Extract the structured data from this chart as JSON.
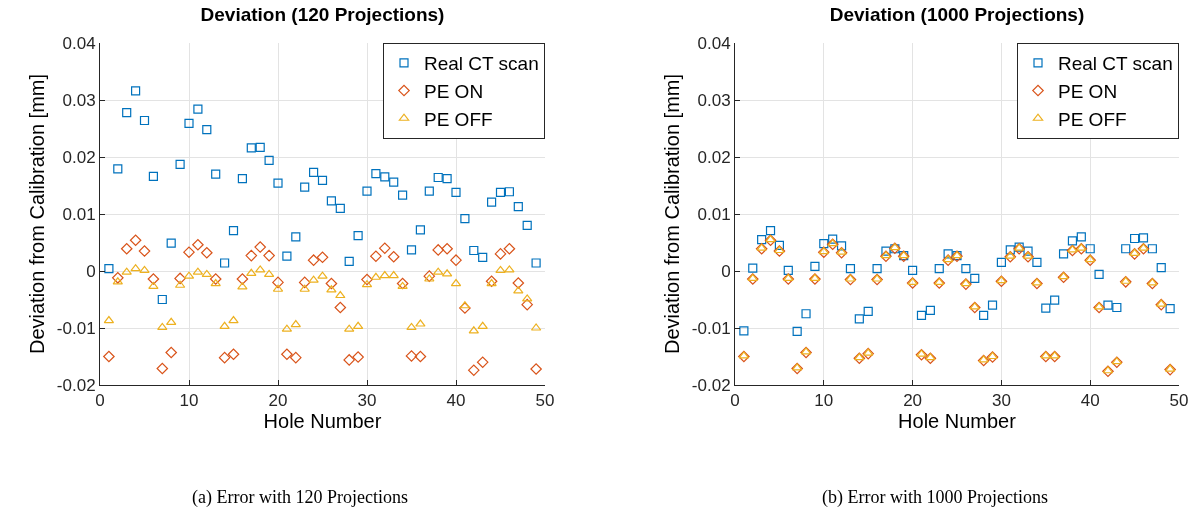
{
  "chart_data": [
    {
      "type": "scatter",
      "title": "Deviation (120 Projections)",
      "xlabel": "Hole Number",
      "ylabel": "Deviation from Calibration [mm]",
      "annotations": [
        "(a) Error with 120 Projections"
      ],
      "x": [
        1,
        2,
        3,
        4,
        5,
        6,
        7,
        8,
        9,
        10,
        11,
        12,
        13,
        14,
        15,
        16,
        17,
        18,
        19,
        20,
        21,
        22,
        23,
        24,
        25,
        26,
        27,
        28,
        29,
        30,
        31,
        32,
        33,
        34,
        35,
        36,
        37,
        38,
        39,
        40,
        41,
        42,
        43,
        44,
        45,
        46,
        47,
        48,
        49
      ],
      "xlim": [
        0,
        50
      ],
      "xticks": [
        0,
        10,
        20,
        30,
        40,
        50
      ],
      "ylim": [
        -0.02,
        0.04
      ],
      "yticks": [
        -0.02,
        -0.01,
        0,
        0.01,
        0.02,
        0.03,
        0.04
      ],
      "grid": true,
      "legend": "top right",
      "series": [
        {
          "name": "Real CT scan",
          "color": "#0072bd",
          "marker": "square",
          "values": [
            0.0004,
            0.0179,
            0.0278,
            0.0316,
            0.0264,
            0.0166,
            -0.005,
            0.0049,
            0.0187,
            0.0259,
            0.0284,
            0.0248,
            0.017,
            0.0014,
            0.0071,
            0.0162,
            0.0216,
            0.0217,
            0.0194,
            0.0154,
            0.0026,
            0.006,
            0.0147,
            0.0173,
            0.0159,
            0.0123,
            0.011,
            0.0017,
            0.0062,
            0.014,
            0.0171,
            0.0165,
            0.0156,
            0.0133,
            0.0037,
            0.0072,
            0.014,
            0.0164,
            0.0162,
            0.0138,
            0.0092,
            0.0036,
            0.0024,
            0.0121,
            0.0138,
            0.0139,
            0.0113,
            0.008,
            0.0014
          ]
        },
        {
          "name": "PE ON",
          "color": "#d95319",
          "marker": "diamond",
          "values": [
            -0.015,
            -0.0012,
            0.0039,
            0.0054,
            0.0035,
            -0.0014,
            -0.0171,
            -0.0143,
            -0.0013,
            0.0033,
            0.0046,
            0.0032,
            -0.0014,
            -0.0152,
            -0.0146,
            -0.0014,
            0.0027,
            0.0042,
            0.0027,
            -0.002,
            -0.0146,
            -0.0152,
            -0.002,
            0.0019,
            0.0024,
            -0.0022,
            -0.0064,
            -0.0156,
            -0.0151,
            -0.0015,
            0.0026,
            0.004,
            0.0025,
            -0.0022,
            -0.0149,
            -0.015,
            -0.0009,
            0.0037,
            0.0039,
            0.0019,
            -0.0065,
            -0.0174,
            -0.016,
            -0.0018,
            0.003,
            0.0039,
            -0.0021,
            -0.0059,
            -0.0172
          ]
        },
        {
          "name": "PE OFF",
          "color": "#edb120",
          "marker": "triangle",
          "values": [
            -0.0087,
            -0.0019,
            -0.0002,
            0.0004,
            0.0001,
            -0.0027,
            -0.0099,
            -0.009,
            -0.0025,
            -0.0009,
            -0.0002,
            -0.0006,
            -0.0022,
            -0.0097,
            -0.0087,
            -0.0028,
            -0.0004,
            0.0002,
            -0.0006,
            -0.0032,
            -0.0102,
            -0.0094,
            -0.0032,
            -0.0016,
            -0.0009,
            -0.0033,
            -0.0043,
            -0.0102,
            -0.0097,
            -0.0024,
            -0.0011,
            -0.0008,
            -0.0008,
            -0.0027,
            -0.0099,
            -0.0093,
            -0.0014,
            -0.0002,
            -0.0005,
            -0.0022,
            -0.0061,
            -0.0105,
            -0.0097,
            -0.0022,
            0.0001,
            0.0002,
            -0.0035,
            -0.0049,
            -0.01
          ]
        }
      ]
    },
    {
      "type": "scatter",
      "title": "Deviation (1000 Projections)",
      "xlabel": "Hole Number",
      "ylabel": "Deviation from Calibration [mm]",
      "annotations": [
        "(b) Error with 1000 Projections"
      ],
      "x": [
        1,
        2,
        3,
        4,
        5,
        6,
        7,
        8,
        9,
        10,
        11,
        12,
        13,
        14,
        15,
        16,
        17,
        18,
        19,
        20,
        21,
        22,
        23,
        24,
        25,
        26,
        27,
        28,
        29,
        30,
        31,
        32,
        33,
        34,
        35,
        36,
        37,
        38,
        39,
        40,
        41,
        42,
        43,
        44,
        45,
        46,
        47,
        48,
        49
      ],
      "xlim": [
        0,
        50
      ],
      "xticks": [
        0,
        10,
        20,
        30,
        40,
        50
      ],
      "ylim": [
        -0.02,
        0.04
      ],
      "yticks": [
        -0.02,
        -0.01,
        0,
        0.01,
        0.02,
        0.03,
        0.04
      ],
      "grid": true,
      "legend": "top right",
      "series": [
        {
          "name": "Real CT scan",
          "color": "#0072bd",
          "marker": "square",
          "values": [
            -0.0105,
            0.0005,
            0.0055,
            0.0071,
            0.0045,
            0.0001,
            -0.0106,
            -0.0075,
            0.0008,
            0.0048,
            0.0056,
            0.0044,
            0.0004,
            -0.0084,
            -0.0071,
            0.0004,
            0.0035,
            0.0039,
            0.0027,
            0.0001,
            -0.0078,
            -0.0069,
            0.0004,
            0.003,
            0.0027,
            0.0004,
            -0.0013,
            -0.0078,
            -0.006,
            0.0015,
            0.0037,
            0.0042,
            0.0035,
            0.0015,
            -0.0065,
            -0.0051,
            0.003,
            0.0053,
            0.006,
            0.0039,
            -0.0006,
            -0.006,
            -0.0064,
            0.0039,
            0.0057,
            0.0058,
            0.0039,
            0.0006,
            -0.0066
          ]
        },
        {
          "name": "PE ON",
          "color": "#d95319",
          "marker": "diamond",
          "values": [
            -0.015,
            -0.0014,
            0.0039,
            0.0054,
            0.0035,
            -0.0014,
            -0.0171,
            -0.0143,
            -0.0014,
            0.0033,
            0.0047,
            0.0032,
            -0.0015,
            -0.0153,
            -0.0145,
            -0.0015,
            0.0026,
            0.004,
            0.0026,
            -0.0021,
            -0.0147,
            -0.0153,
            -0.0021,
            0.0019,
            0.0026,
            -0.0023,
            -0.0064,
            -0.0157,
            -0.0151,
            -0.0018,
            0.0025,
            0.0039,
            0.0025,
            -0.0022,
            -0.015,
            -0.015,
            -0.0011,
            0.0036,
            0.0039,
            0.0019,
            -0.0064,
            -0.0176,
            -0.016,
            -0.0019,
            0.003,
            0.0039,
            -0.0022,
            -0.0059,
            -0.0173
          ]
        },
        {
          "name": "PE OFF",
          "color": "#edb120",
          "marker": "triangle",
          "values": [
            -0.0149,
            -0.0013,
            0.004,
            0.0055,
            0.0036,
            -0.0013,
            -0.017,
            -0.0142,
            -0.0013,
            0.0034,
            0.0048,
            0.0033,
            -0.0014,
            -0.0152,
            -0.0144,
            -0.0014,
            0.0027,
            0.0041,
            0.0027,
            -0.002,
            -0.0146,
            -0.0152,
            -0.002,
            0.002,
            0.0027,
            -0.0022,
            -0.0063,
            -0.0156,
            -0.015,
            -0.0017,
            0.0026,
            0.004,
            0.0026,
            -0.0021,
            -0.0149,
            -0.0149,
            -0.001,
            0.0037,
            0.004,
            0.002,
            -0.0063,
            -0.0175,
            -0.0159,
            -0.0018,
            0.0031,
            0.004,
            -0.0021,
            -0.0058,
            -0.0172
          ]
        }
      ]
    }
  ]
}
